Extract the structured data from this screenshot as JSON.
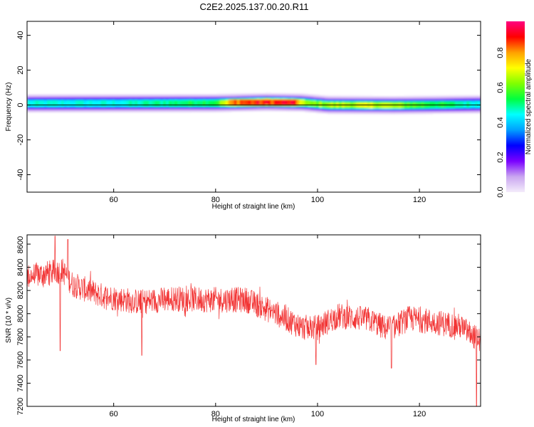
{
  "figure": {
    "title": "C2E2.2025.137.00.20.R11"
  },
  "chart_data": [
    {
      "type": "heatmap",
      "title": "C2E2.2025.137.00.20.R11",
      "xlabel": "Height of straight line (km)",
      "ylabel": "Frequency (Hz)",
      "xlim": [
        43,
        132
      ],
      "ylim": [
        -50,
        48
      ],
      "xticks": [
        60,
        80,
        100,
        120
      ],
      "yticks": [
        40,
        20,
        0,
        -20,
        -40
      ],
      "zero_line": 0,
      "band_center_hz": [
        {
          "x": 43,
          "f": 1.0
        },
        {
          "x": 80,
          "f": 1.2
        },
        {
          "x": 90,
          "f": 1.8
        },
        {
          "x": 97,
          "f": 1.5
        },
        {
          "x": 102,
          "f": 0.2
        },
        {
          "x": 115,
          "f": 0.0
        },
        {
          "x": 132,
          "f": 0.5
        }
      ],
      "band_halfwidth_hz": 3,
      "peak_amplitude": [
        {
          "x": 43,
          "a": 0.45
        },
        {
          "x": 60,
          "a": 0.45
        },
        {
          "x": 80,
          "a": 0.55
        },
        {
          "x": 84,
          "a": 0.85
        },
        {
          "x": 95,
          "a": 0.9
        },
        {
          "x": 98,
          "a": 0.6
        },
        {
          "x": 102,
          "a": 0.65
        },
        {
          "x": 112,
          "a": 0.68
        },
        {
          "x": 118,
          "a": 0.6
        },
        {
          "x": 132,
          "a": 0.45
        }
      ],
      "colorbar": {
        "label": "Normalized spectral amplitude",
        "range": [
          0.0,
          0.98
        ],
        "ticks": [
          0.0,
          0.2,
          0.4,
          0.6,
          0.8
        ],
        "colormap": [
          "#ffffff",
          "#c9a6f0",
          "#7a00ff",
          "#0000ff",
          "#00a0ff",
          "#00ffff",
          "#00ff40",
          "#80ff00",
          "#ffff00",
          "#ffa000",
          "#ff0000",
          "#ff0080"
        ]
      }
    },
    {
      "type": "line",
      "xlabel": "Height of straight line (km)",
      "ylabel": "SNR (10 * v/v)",
      "xlim": [
        43,
        132
      ],
      "ylim": [
        7200,
        8680
      ],
      "xticks": [
        60,
        80,
        100,
        120
      ],
      "yticks": [
        7200,
        7400,
        7600,
        7800,
        8000,
        8200,
        8400,
        8600
      ],
      "series": [
        {
          "color": "#f23535",
          "trend": [
            {
              "x": 43,
              "y": 8320
            },
            {
              "x": 46,
              "y": 8340
            },
            {
              "x": 50,
              "y": 8370
            },
            {
              "x": 52,
              "y": 8250
            },
            {
              "x": 58,
              "y": 8150
            },
            {
              "x": 65,
              "y": 8100
            },
            {
              "x": 72,
              "y": 8130
            },
            {
              "x": 78,
              "y": 8120
            },
            {
              "x": 86,
              "y": 8120
            },
            {
              "x": 92,
              "y": 8000
            },
            {
              "x": 97,
              "y": 7880
            },
            {
              "x": 100,
              "y": 7880
            },
            {
              "x": 104,
              "y": 7980
            },
            {
              "x": 110,
              "y": 7950
            },
            {
              "x": 114,
              "y": 7860
            },
            {
              "x": 118,
              "y": 7960
            },
            {
              "x": 124,
              "y": 7920
            },
            {
              "x": 128,
              "y": 7890
            },
            {
              "x": 132,
              "y": 7760
            }
          ],
          "noise_amplitude": 110,
          "dips": [
            {
              "x": 49.5,
              "y": 7680
            },
            {
              "x": 65.5,
              "y": 7640
            },
            {
              "x": 99.7,
              "y": 7560
            },
            {
              "x": 114.5,
              "y": 7530
            },
            {
              "x": 131.2,
              "y": 7200
            }
          ],
          "spikes": [
            {
              "x": 48.5,
              "y": 8670
            },
            {
              "x": 51.0,
              "y": 8640
            }
          ]
        }
      ]
    }
  ]
}
